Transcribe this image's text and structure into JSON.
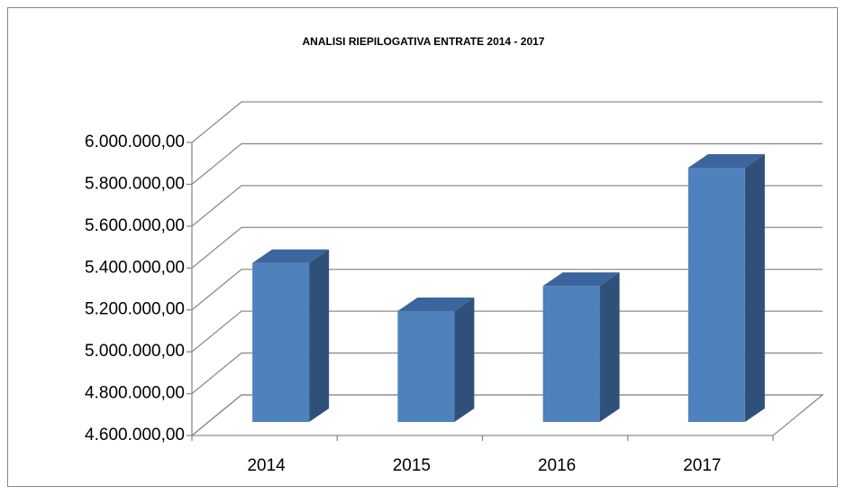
{
  "chart_data": {
    "type": "bar3d",
    "title": "ANALISI RIEPILOGATIVA ENTRATE 2014 - 2017",
    "categories": [
      "2014",
      "2015",
      "2016",
      "2017"
    ],
    "values": [
      5360000,
      5130000,
      5250000,
      5815000
    ],
    "color": "#4f81bd",
    "ylim": [
      4600000,
      6000000
    ],
    "yticks": [
      {
        "value": 4600000,
        "label": "4.600.000,00"
      },
      {
        "value": 4800000,
        "label": "4.800.000,00"
      },
      {
        "value": 5000000,
        "label": "5.000.000,00"
      },
      {
        "value": 5200000,
        "label": "5.200.000,00"
      },
      {
        "value": 5400000,
        "label": "5.400.000,00"
      },
      {
        "value": 5600000,
        "label": "5.600.000,00"
      },
      {
        "value": 5800000,
        "label": "5.800.000,00"
      },
      {
        "value": 6000000,
        "label": "6.000.000,00"
      }
    ],
    "grid": true
  }
}
